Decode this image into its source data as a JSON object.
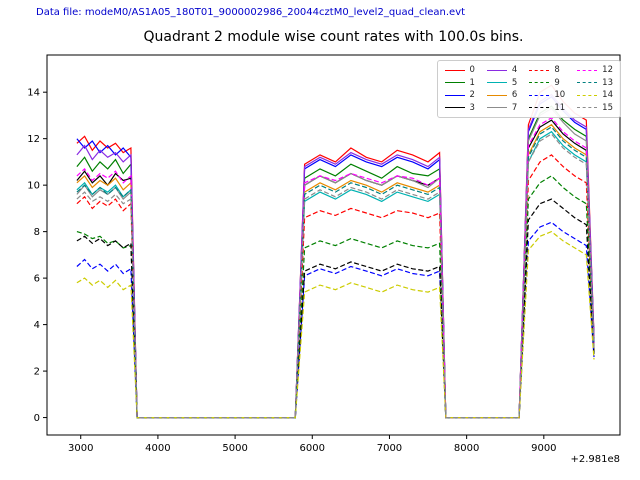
{
  "header": {
    "data_file_label": "Data file: modeM0/AS1A05_180T01_9000002986_20044cztM0_level2_quad_clean.evt"
  },
  "chart_data": {
    "type": "line",
    "title": "Quadrant 2 module wise count rates with 100.0s bins.",
    "xlabel": "",
    "ylabel": "",
    "x_offset_label": "+2.981e8",
    "grid": false,
    "legend_position": "upper right",
    "legend_labels": [
      "0",
      "1",
      "2",
      "3",
      "4",
      "5",
      "6",
      "7",
      "8",
      "9",
      "10",
      "11",
      "12",
      "13",
      "14",
      "15"
    ],
    "xlim": [
      2563,
      9987
    ],
    "ylim": [
      -0.75,
      15.6
    ],
    "xticks": [
      3000,
      4000,
      5000,
      6000,
      7000,
      8000,
      9000
    ],
    "yticks": [
      0,
      2,
      4,
      6,
      8,
      10,
      12,
      14
    ],
    "x": [
      2950,
      3050,
      3150,
      3250,
      3350,
      3450,
      3550,
      3650,
      3730,
      3850,
      4800,
      5650,
      5780,
      5900,
      6100,
      6300,
      6500,
      6700,
      6900,
      7100,
      7300,
      7500,
      7650,
      7730,
      7850,
      8300,
      8680,
      8800,
      8950,
      9100,
      9250,
      9400,
      9550,
      9650
    ],
    "series": [
      {
        "name": "0",
        "color": "#ff0000",
        "dash": false,
        "values": [
          11.8,
          12.1,
          11.5,
          11.9,
          11.6,
          11.8,
          11.4,
          11.6,
          0,
          0,
          0,
          0,
          0,
          10.9,
          11.3,
          11.0,
          11.6,
          11.2,
          11.0,
          11.5,
          11.3,
          11.0,
          11.4,
          0,
          0,
          0,
          0,
          12.6,
          14.0,
          14.3,
          13.6,
          13.1,
          12.8,
          3.5
        ]
      },
      {
        "name": "1",
        "color": "#008000",
        "dash": false,
        "values": [
          10.8,
          11.2,
          10.6,
          11.0,
          10.7,
          11.1,
          10.5,
          10.9,
          0,
          0,
          0,
          0,
          0,
          10.3,
          10.7,
          10.4,
          10.9,
          10.6,
          10.3,
          10.8,
          10.5,
          10.4,
          10.7,
          0,
          0,
          0,
          0,
          12.0,
          13.1,
          13.4,
          12.8,
          12.4,
          12.1,
          3.3
        ]
      },
      {
        "name": "2",
        "color": "#0000ff",
        "dash": false,
        "values": [
          12.0,
          11.6,
          11.9,
          11.4,
          11.7,
          11.3,
          11.6,
          11.2,
          0,
          0,
          0,
          0,
          0,
          10.7,
          11.1,
          10.8,
          11.3,
          11.0,
          10.8,
          11.2,
          11.0,
          10.7,
          11.1,
          0,
          0,
          0,
          0,
          12.3,
          13.5,
          13.8,
          13.2,
          12.7,
          12.4,
          3.4
        ]
      },
      {
        "name": "3",
        "color": "#000000",
        "dash": false,
        "values": [
          10.2,
          10.6,
          10.1,
          10.4,
          10.0,
          10.5,
          10.2,
          10.3,
          0,
          0,
          0,
          0,
          0,
          10.0,
          10.4,
          10.1,
          10.5,
          10.2,
          10.0,
          10.4,
          10.2,
          10.0,
          10.3,
          0,
          0,
          0,
          0,
          11.6,
          12.5,
          12.8,
          12.2,
          11.8,
          11.5,
          3.2
        ]
      },
      {
        "name": "4",
        "color": "#8a2be2",
        "dash": false,
        "values": [
          11.3,
          11.7,
          11.1,
          11.5,
          11.2,
          11.4,
          11.0,
          11.3,
          0,
          0,
          0,
          0,
          0,
          10.8,
          11.2,
          10.9,
          11.4,
          11.1,
          10.9,
          11.3,
          11.1,
          10.8,
          11.2,
          0,
          0,
          0,
          0,
          12.4,
          13.6,
          13.9,
          13.3,
          12.8,
          12.5,
          3.4
        ]
      },
      {
        "name": "5",
        "color": "#00b2b2",
        "dash": false,
        "values": [
          9.8,
          10.1,
          9.6,
          9.9,
          9.7,
          10.0,
          9.5,
          9.8,
          0,
          0,
          0,
          0,
          0,
          9.3,
          9.7,
          9.4,
          9.8,
          9.6,
          9.3,
          9.7,
          9.5,
          9.3,
          9.6,
          0,
          0,
          0,
          0,
          11.0,
          12.0,
          12.3,
          11.7,
          11.3,
          11.0,
          3.0
        ]
      },
      {
        "name": "6",
        "color": "#e68a00",
        "dash": false,
        "values": [
          10.1,
          10.4,
          9.9,
          10.2,
          10.0,
          10.3,
          9.8,
          10.1,
          0,
          0,
          0,
          0,
          0,
          9.7,
          10.1,
          9.8,
          10.2,
          10.0,
          9.7,
          10.1,
          9.9,
          9.7,
          10.0,
          0,
          0,
          0,
          0,
          11.3,
          12.3,
          12.6,
          12.0,
          11.6,
          11.3,
          3.1
        ]
      },
      {
        "name": "7",
        "color": "#8c8c8c",
        "dash": false,
        "values": [
          9.6,
          10.0,
          9.5,
          9.8,
          9.6,
          9.9,
          9.4,
          9.7,
          0,
          0,
          0,
          0,
          0,
          10.0,
          10.4,
          10.1,
          10.5,
          10.2,
          10.0,
          10.4,
          10.2,
          9.9,
          10.3,
          0,
          0,
          0,
          0,
          11.9,
          13.0,
          13.3,
          12.7,
          12.2,
          11.9,
          3.2
        ]
      },
      {
        "name": "8",
        "color": "#ff0000",
        "dash": true,
        "values": [
          9.2,
          9.5,
          9.0,
          9.3,
          9.1,
          9.4,
          8.9,
          9.2,
          0,
          0,
          0,
          0,
          0,
          8.6,
          8.9,
          8.7,
          9.0,
          8.8,
          8.6,
          8.9,
          8.8,
          8.6,
          8.8,
          0,
          0,
          0,
          0,
          10.2,
          11.0,
          11.3,
          10.8,
          10.4,
          10.1,
          2.9
        ]
      },
      {
        "name": "9",
        "color": "#008000",
        "dash": true,
        "values": [
          8.0,
          7.9,
          7.7,
          7.8,
          7.5,
          7.6,
          7.3,
          7.4,
          0,
          0,
          0,
          0,
          0,
          7.3,
          7.6,
          7.4,
          7.7,
          7.5,
          7.3,
          7.6,
          7.4,
          7.3,
          7.5,
          0,
          0,
          0,
          0,
          9.4,
          10.1,
          10.4,
          9.9,
          9.5,
          9.2,
          2.8
        ]
      },
      {
        "name": "10",
        "color": "#0000ff",
        "dash": true,
        "values": [
          6.5,
          6.8,
          6.4,
          6.6,
          6.3,
          6.6,
          6.2,
          6.4,
          0,
          0,
          0,
          0,
          0,
          6.1,
          6.4,
          6.2,
          6.5,
          6.3,
          6.1,
          6.4,
          6.2,
          6.1,
          6.3,
          0,
          0,
          0,
          0,
          7.6,
          8.2,
          8.4,
          8.0,
          7.7,
          7.4,
          2.6
        ]
      },
      {
        "name": "11",
        "color": "#000000",
        "dash": true,
        "values": [
          7.6,
          7.8,
          7.5,
          7.7,
          7.4,
          7.6,
          7.3,
          7.5,
          0,
          0,
          0,
          0,
          0,
          6.3,
          6.6,
          6.4,
          6.7,
          6.5,
          6.3,
          6.6,
          6.4,
          6.3,
          6.5,
          0,
          0,
          0,
          0,
          8.5,
          9.2,
          9.4,
          9.0,
          8.6,
          8.3,
          2.7
        ]
      },
      {
        "name": "12",
        "color": "#ff00ff",
        "dash": true,
        "values": [
          10.4,
          10.7,
          10.2,
          10.5,
          10.3,
          10.6,
          10.1,
          10.4,
          0,
          0,
          0,
          0,
          0,
          10.1,
          10.4,
          10.2,
          10.5,
          10.3,
          10.1,
          10.4,
          10.3,
          10.0,
          10.3,
          0,
          0,
          0,
          0,
          11.7,
          12.6,
          12.9,
          12.3,
          11.9,
          11.6,
          3.2
        ]
      },
      {
        "name": "13",
        "color": "#008080",
        "dash": true,
        "values": [
          9.7,
          10.0,
          9.6,
          9.9,
          9.6,
          9.9,
          9.5,
          9.8,
          0,
          0,
          0,
          0,
          0,
          9.6,
          10.0,
          9.7,
          10.1,
          9.9,
          9.6,
          10.0,
          9.8,
          9.6,
          9.9,
          0,
          0,
          0,
          0,
          11.2,
          12.2,
          12.5,
          11.9,
          11.5,
          11.2,
          3.1
        ]
      },
      {
        "name": "14",
        "color": "#cccc00",
        "dash": true,
        "values": [
          5.8,
          6.0,
          5.7,
          5.9,
          5.6,
          5.9,
          5.5,
          5.7,
          0,
          0,
          0,
          0,
          0,
          5.4,
          5.7,
          5.5,
          5.8,
          5.6,
          5.4,
          5.7,
          5.5,
          5.4,
          5.6,
          0,
          0,
          0,
          0,
          7.2,
          7.8,
          8.0,
          7.6,
          7.3,
          7.0,
          2.5
        ]
      },
      {
        "name": "15",
        "color": "#8c8c8c",
        "dash": true,
        "values": [
          9.4,
          9.7,
          9.3,
          9.5,
          9.3,
          9.6,
          9.2,
          9.4,
          0,
          0,
          0,
          0,
          0,
          9.4,
          9.8,
          9.5,
          9.9,
          9.7,
          9.4,
          9.8,
          9.6,
          9.4,
          9.7,
          0,
          0,
          0,
          0,
          11.0,
          11.9,
          12.2,
          11.6,
          11.2,
          10.9,
          3.0
        ]
      }
    ]
  }
}
